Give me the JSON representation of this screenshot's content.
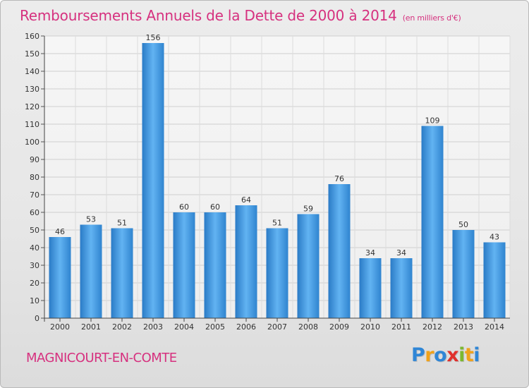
{
  "title": "Remboursements Annuels de la Dette de 2000 à 2014",
  "subtitle": "(en milliers d'€)",
  "commune": "MAGNICOURT-EN-COMTE",
  "logo_letters": [
    "P",
    "r",
    "o",
    "x",
    "i",
    "t",
    "i"
  ],
  "logo_colors": [
    "#2f86d6",
    "#f0a21a",
    "#2f86d6",
    "#e0302c",
    "#7cb82f",
    "#f0a21a",
    "#2f86d6"
  ],
  "chart_data": {
    "type": "bar",
    "title": "Remboursements Annuels de la Dette de 2000 à 2014",
    "subtitle": "(en milliers d'€)",
    "categories": [
      "2000",
      "2001",
      "2002",
      "2003",
      "2004",
      "2005",
      "2006",
      "2007",
      "2008",
      "2009",
      "2010",
      "2011",
      "2012",
      "2013",
      "2014"
    ],
    "values": [
      46,
      53,
      51,
      156,
      60,
      60,
      64,
      51,
      59,
      76,
      34,
      34,
      109,
      50,
      43
    ],
    "ylim": [
      0,
      160
    ],
    "yticks": [
      0,
      10,
      20,
      30,
      40,
      50,
      60,
      70,
      80,
      90,
      100,
      110,
      120,
      130,
      140,
      150,
      160
    ],
    "xlabel": "",
    "ylabel": "",
    "grid": true,
    "bar_color": "#3a8fd9",
    "legend": "none"
  }
}
